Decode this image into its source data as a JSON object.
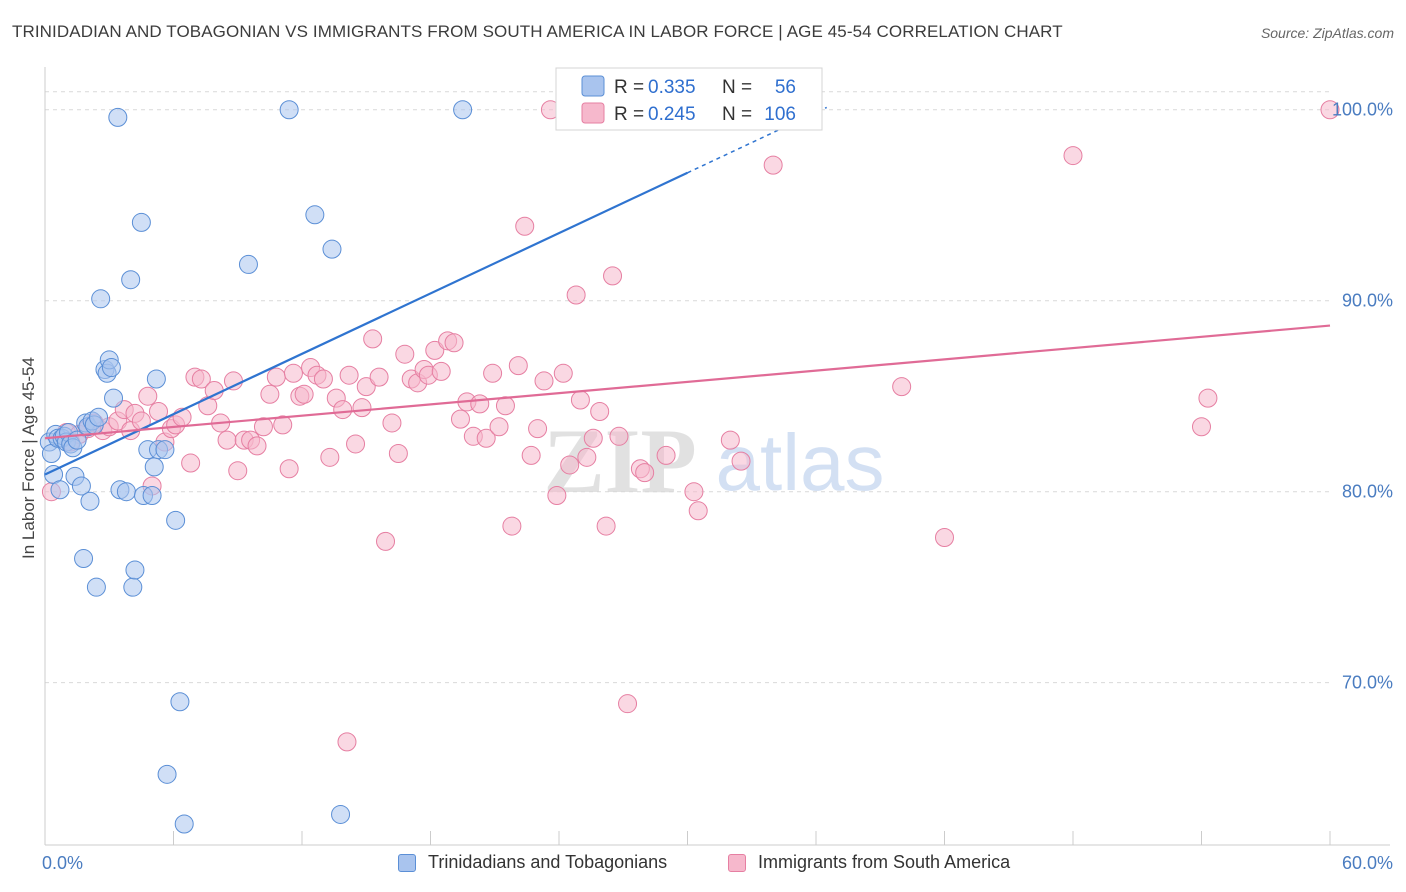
{
  "title": "TRINIDADIAN AND TOBAGONIAN VS IMMIGRANTS FROM SOUTH AMERICA IN LABOR FORCE | AGE 45-54 CORRELATION CHART",
  "source": "Source: ZipAtlas.com",
  "watermark": {
    "zip": "ZIP",
    "atlas": "atlas"
  },
  "colors": {
    "blue_fill": "#a9c4ee",
    "blue_stroke": "#5b8fd6",
    "blue_line": "#2f74d0",
    "pink_fill": "#f6b8cc",
    "pink_stroke": "#e67fa2",
    "pink_line": "#e06b96",
    "tick_label": "#4a7cc0",
    "grid": "#d9d9d9"
  },
  "legend": {
    "series1": {
      "r_label": "R =",
      "r_value": "0.335",
      "n_label": "N =",
      "n_value": "56"
    },
    "series2": {
      "r_label": "R =",
      "r_value": "0.245",
      "n_label": "N =",
      "n_value": "106"
    }
  },
  "chart_data": {
    "type": "scatter",
    "title": "TRINIDADIAN AND TOBAGONIAN VS IMMIGRANTS FROM SOUTH AMERICA IN LABOR FORCE | AGE 45-54 CORRELATION CHART",
    "xlabel": "",
    "ylabel": "In Labor Force | Age 45-54",
    "xlim": [
      0,
      60
    ],
    "ylim": [
      61.5,
      102.5
    ],
    "x_tick_labels": [
      "0.0%",
      "60.0%"
    ],
    "y_ticks": [
      70,
      80,
      90,
      100
    ],
    "y_tick_labels": [
      "70.0%",
      "80.0%",
      "90.0%",
      "100.0%"
    ],
    "grid": true,
    "legend_position": "top-center",
    "series": [
      {
        "name": "Trinidadians and Tobagonians",
        "color": "#a9c4ee",
        "r": 0.335,
        "n": 56,
        "trend": {
          "x": [
            0.0,
            30.0
          ],
          "y": [
            80.9,
            96.7
          ]
        },
        "points": [
          [
            0.2,
            82.6
          ],
          [
            0.3,
            82.0
          ],
          [
            0.4,
            80.9
          ],
          [
            0.5,
            83.0
          ],
          [
            0.6,
            82.8
          ],
          [
            0.7,
            80.1
          ],
          [
            0.8,
            82.8
          ],
          [
            0.9,
            82.9
          ],
          [
            1.0,
            82.6
          ],
          [
            1.1,
            83.1
          ],
          [
            1.2,
            82.5
          ],
          [
            1.3,
            82.3
          ],
          [
            1.4,
            80.8
          ],
          [
            1.5,
            82.7
          ],
          [
            1.7,
            80.3
          ],
          [
            1.8,
            76.5
          ],
          [
            1.9,
            83.6
          ],
          [
            2.0,
            83.4
          ],
          [
            2.1,
            79.5
          ],
          [
            2.2,
            83.7
          ],
          [
            2.3,
            83.5
          ],
          [
            2.4,
            75.0
          ],
          [
            2.5,
            83.9
          ],
          [
            2.6,
            90.1
          ],
          [
            2.8,
            86.4
          ],
          [
            2.9,
            86.2
          ],
          [
            3.0,
            86.9
          ],
          [
            3.1,
            86.5
          ],
          [
            3.2,
            84.9
          ],
          [
            3.4,
            99.6
          ],
          [
            3.5,
            80.1
          ],
          [
            3.8,
            80.0
          ],
          [
            4.0,
            91.1
          ],
          [
            4.1,
            75.0
          ],
          [
            4.2,
            75.9
          ],
          [
            4.5,
            94.1
          ],
          [
            4.6,
            79.8
          ],
          [
            4.8,
            82.2
          ],
          [
            5.0,
            79.8
          ],
          [
            5.1,
            81.3
          ],
          [
            5.2,
            85.9
          ],
          [
            5.3,
            82.2
          ],
          [
            5.6,
            82.2
          ],
          [
            6.1,
            78.5
          ],
          [
            6.3,
            69.0
          ],
          [
            5.7,
            65.2
          ],
          [
            6.5,
            62.6
          ],
          [
            9.5,
            91.9
          ],
          [
            11.4,
            100.0
          ],
          [
            12.6,
            94.5
          ],
          [
            13.4,
            92.7
          ],
          [
            13.8,
            63.1
          ],
          [
            19.5,
            100.0
          ],
          [
            25.3,
            100.0
          ],
          [
            27.7,
            99.9
          ],
          [
            29.1,
            100.0
          ]
        ]
      },
      {
        "name": "Immigrants from South America",
        "color": "#f6b8cc",
        "r": 0.245,
        "n": 106,
        "trend": {
          "x": [
            0.0,
            60.0
          ],
          "y": [
            82.8,
            88.7
          ]
        },
        "points": [
          [
            0.3,
            80.0
          ],
          [
            1.0,
            83.1
          ],
          [
            1.2,
            82.6
          ],
          [
            1.6,
            83.0
          ],
          [
            2.0,
            83.3
          ],
          [
            2.3,
            83.6
          ],
          [
            2.7,
            83.2
          ],
          [
            3.0,
            83.4
          ],
          [
            3.4,
            83.7
          ],
          [
            3.7,
            84.3
          ],
          [
            4.0,
            83.2
          ],
          [
            4.2,
            84.1
          ],
          [
            4.5,
            83.7
          ],
          [
            4.8,
            85.0
          ],
          [
            5.0,
            80.3
          ],
          [
            5.3,
            84.2
          ],
          [
            5.6,
            82.6
          ],
          [
            5.9,
            83.3
          ],
          [
            6.1,
            83.5
          ],
          [
            6.4,
            83.9
          ],
          [
            6.8,
            81.5
          ],
          [
            7.0,
            86.0
          ],
          [
            7.3,
            85.9
          ],
          [
            7.6,
            84.5
          ],
          [
            7.9,
            85.3
          ],
          [
            8.2,
            83.6
          ],
          [
            8.5,
            82.7
          ],
          [
            8.8,
            85.8
          ],
          [
            9.0,
            81.1
          ],
          [
            9.3,
            82.7
          ],
          [
            9.6,
            82.7
          ],
          [
            9.9,
            82.4
          ],
          [
            10.2,
            83.4
          ],
          [
            10.5,
            85.1
          ],
          [
            10.8,
            86.0
          ],
          [
            11.1,
            83.5
          ],
          [
            11.4,
            81.2
          ],
          [
            11.6,
            86.2
          ],
          [
            11.9,
            85.0
          ],
          [
            12.1,
            85.1
          ],
          [
            12.4,
            86.5
          ],
          [
            12.7,
            86.1
          ],
          [
            13.0,
            85.9
          ],
          [
            13.3,
            81.8
          ],
          [
            13.6,
            84.9
          ],
          [
            13.9,
            84.3
          ],
          [
            14.2,
            86.1
          ],
          [
            14.5,
            82.5
          ],
          [
            14.8,
            84.4
          ],
          [
            15.0,
            85.5
          ],
          [
            15.3,
            88.0
          ],
          [
            15.6,
            86.0
          ],
          [
            15.9,
            77.4
          ],
          [
            16.2,
            83.6
          ],
          [
            16.5,
            82.0
          ],
          [
            16.8,
            87.2
          ],
          [
            17.1,
            85.9
          ],
          [
            17.4,
            85.7
          ],
          [
            17.7,
            86.4
          ],
          [
            17.9,
            86.1
          ],
          [
            18.2,
            87.4
          ],
          [
            18.5,
            86.3
          ],
          [
            18.8,
            87.9
          ],
          [
            19.1,
            87.8
          ],
          [
            19.4,
            83.8
          ],
          [
            19.7,
            84.7
          ],
          [
            20.0,
            82.9
          ],
          [
            20.3,
            84.6
          ],
          [
            20.6,
            82.8
          ],
          [
            20.9,
            86.2
          ],
          [
            21.2,
            83.4
          ],
          [
            21.5,
            84.5
          ],
          [
            21.8,
            78.2
          ],
          [
            22.1,
            86.6
          ],
          [
            22.4,
            93.9
          ],
          [
            22.7,
            81.9
          ],
          [
            23.0,
            83.3
          ],
          [
            23.3,
            85.8
          ],
          [
            23.6,
            100.0
          ],
          [
            23.9,
            79.8
          ],
          [
            24.2,
            86.2
          ],
          [
            24.5,
            81.4
          ],
          [
            24.8,
            90.3
          ],
          [
            25.0,
            84.8
          ],
          [
            25.3,
            81.8
          ],
          [
            25.6,
            82.8
          ],
          [
            25.9,
            84.2
          ],
          [
            26.2,
            78.2
          ],
          [
            26.5,
            91.3
          ],
          [
            26.8,
            82.9
          ],
          [
            27.2,
            68.9
          ],
          [
            27.8,
            81.2
          ],
          [
            28.0,
            81.0
          ],
          [
            29.0,
            81.9
          ],
          [
            30.3,
            80.0
          ],
          [
            30.5,
            79.0
          ],
          [
            32.0,
            82.7
          ],
          [
            32.5,
            81.6
          ],
          [
            34.0,
            97.1
          ],
          [
            40.0,
            85.5
          ],
          [
            42.0,
            77.6
          ],
          [
            48.0,
            97.6
          ],
          [
            54.0,
            83.4
          ],
          [
            54.3,
            84.9
          ],
          [
            60.0,
            100.0
          ],
          [
            14.1,
            66.9
          ]
        ]
      }
    ]
  },
  "axis_text": {
    "ylabel": "In Labor Force | Age 45-54",
    "x_min_label": "0.0%",
    "x_max_label": "60.0%"
  }
}
